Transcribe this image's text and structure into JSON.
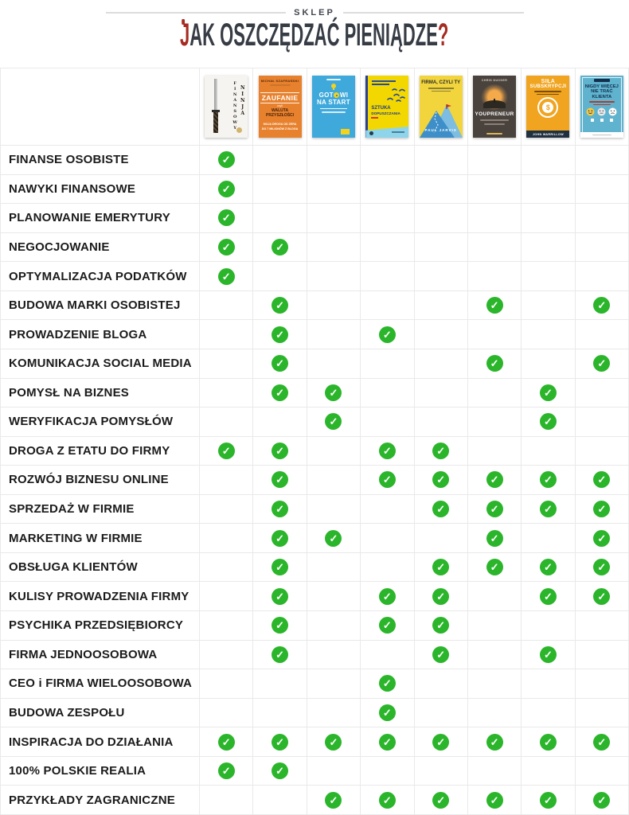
{
  "header": {
    "shop_label": "SKLEP",
    "title": {
      "first_letter": "J",
      "middle": "AK OSZCZĘDZAĆ PIENIĄDZE",
      "question_mark": "?"
    }
  },
  "colors": {
    "check_green": "#2bb52b",
    "title_red": "#a62b22",
    "title_dark": "#363b44",
    "grid_line": "#e9e9e9"
  },
  "icons": {
    "check": "✓"
  },
  "books": [
    {
      "name": "Finansowy ninja",
      "cover_color": "#f6f4f0",
      "vertical_text_1": "FINANSOWY",
      "vertical_text_2": "NINJA"
    },
    {
      "name": "Zaufanie, czyli waluta przyszłości",
      "cover_color": "#e8812d",
      "author": "MICHAŁ SZAFRAŃSKI",
      "title": "ZAUFANIE",
      "subtitle_label": "czyli",
      "subtitle": "WALUTA PRZYSZŁOŚCI",
      "tagline_line1": "MOJA DROGA OD ZERA",
      "tagline_line2": "DO 7 MILIONÓW Z BLOGA"
    },
    {
      "name": "Gotowi na start",
      "cover_color": "#3fa9dc",
      "title_part1": "GOT",
      "title_part2": "WI",
      "title_line2": "NA START"
    },
    {
      "name": "Sztuka dopuszczania",
      "cover_color": "#f2d800",
      "title_line1": "SZTUKA",
      "title_line2": "DOPUSZCZANIA"
    },
    {
      "name": "Firma, czyli ty",
      "cover_color": "#f2d53d",
      "title": "FIRMA, CZYLI TY",
      "author": "PAUL JARVIS"
    },
    {
      "name": "Youpreneur",
      "cover_color": "#4a433d",
      "author": "CHRIS DUCKER",
      "title": "YOUPRENEUR"
    },
    {
      "name": "Siła subskrypcji",
      "cover_color": "#f0a41f",
      "title_line1": "SIŁA",
      "title_line2": "SUBSKRYPCJI",
      "author": "JOHN WARRILLOW",
      "coin_symbol": "$"
    },
    {
      "name": "Nigdy więcej nie trać klienta",
      "cover_color": "#5fb3cf",
      "title_line1": "NIGDY WIĘCEJ",
      "title_line2": "NIE TRAĆ",
      "title_line3": "KLIENTA"
    }
  ],
  "matrix": {
    "rows": [
      {
        "label": "FINANSE OSOBISTE",
        "checks": [
          1,
          0,
          0,
          0,
          0,
          0,
          0,
          0
        ]
      },
      {
        "label": "NAWYKI FINANSOWE",
        "checks": [
          1,
          0,
          0,
          0,
          0,
          0,
          0,
          0
        ]
      },
      {
        "label": "PLANOWANIE EMERYTURY",
        "checks": [
          1,
          0,
          0,
          0,
          0,
          0,
          0,
          0
        ]
      },
      {
        "label": "NEGOCJOWANIE",
        "checks": [
          1,
          1,
          0,
          0,
          0,
          0,
          0,
          0
        ]
      },
      {
        "label": "OPTYMALIZACJA PODATKÓW",
        "checks": [
          1,
          0,
          0,
          0,
          0,
          0,
          0,
          0
        ]
      },
      {
        "label": "BUDOWA MARKI OSOBISTEJ",
        "checks": [
          0,
          1,
          0,
          0,
          0,
          1,
          0,
          1
        ]
      },
      {
        "label": "PROWADZENIE BLOGA",
        "checks": [
          0,
          1,
          0,
          1,
          0,
          0,
          0,
          0
        ]
      },
      {
        "label": "KOMUNIKACJA SOCIAL MEDIA",
        "checks": [
          0,
          1,
          0,
          0,
          0,
          1,
          0,
          1
        ]
      },
      {
        "label": "POMYSŁ NA BIZNES",
        "checks": [
          0,
          1,
          1,
          0,
          0,
          0,
          1,
          0
        ]
      },
      {
        "label": "WERYFIKACJA POMYSŁÓW",
        "checks": [
          0,
          0,
          1,
          0,
          0,
          0,
          1,
          0
        ]
      },
      {
        "label": "DROGA Z ETATU DO FIRMY",
        "checks": [
          1,
          1,
          0,
          1,
          1,
          0,
          0,
          0
        ]
      },
      {
        "label": "ROZWÓJ BIZNESU ONLINE",
        "checks": [
          0,
          1,
          0,
          1,
          1,
          1,
          1,
          1
        ]
      },
      {
        "label": "SPRZEDAŻ W FIRMIE",
        "checks": [
          0,
          1,
          0,
          0,
          1,
          1,
          1,
          1
        ]
      },
      {
        "label": "MARKETING W FIRMIE",
        "checks": [
          0,
          1,
          1,
          0,
          0,
          1,
          0,
          1
        ]
      },
      {
        "label": "OBSŁUGA KLIENTÓW",
        "checks": [
          0,
          1,
          0,
          0,
          1,
          1,
          1,
          1
        ]
      },
      {
        "label": "KULISY PROWADZENIA FIRMY",
        "checks": [
          0,
          1,
          0,
          1,
          1,
          0,
          1,
          1
        ]
      },
      {
        "label": "PSYCHIKA PRZEDSIĘBIORCY",
        "checks": [
          0,
          1,
          0,
          1,
          1,
          0,
          0,
          0
        ]
      },
      {
        "label": "FIRMA JEDNOOSOBOWA",
        "checks": [
          0,
          1,
          0,
          0,
          1,
          0,
          1,
          0
        ]
      },
      {
        "label": "CEO i FIRMA WIELOOSOBOWA",
        "checks": [
          0,
          0,
          0,
          1,
          0,
          0,
          0,
          0
        ]
      },
      {
        "label": "BUDOWA ZESPOŁU",
        "checks": [
          0,
          0,
          0,
          1,
          0,
          0,
          0,
          0
        ]
      },
      {
        "label": "INSPIRACJA DO DZIAŁANIA",
        "checks": [
          1,
          1,
          1,
          1,
          1,
          1,
          1,
          1
        ]
      },
      {
        "label": "100% POLSKIE REALIA",
        "checks": [
          1,
          1,
          0,
          0,
          0,
          0,
          0,
          0
        ]
      },
      {
        "label": "PRZYKŁADY ZAGRANICZNE",
        "checks": [
          0,
          0,
          1,
          1,
          1,
          1,
          1,
          1
        ]
      }
    ]
  }
}
